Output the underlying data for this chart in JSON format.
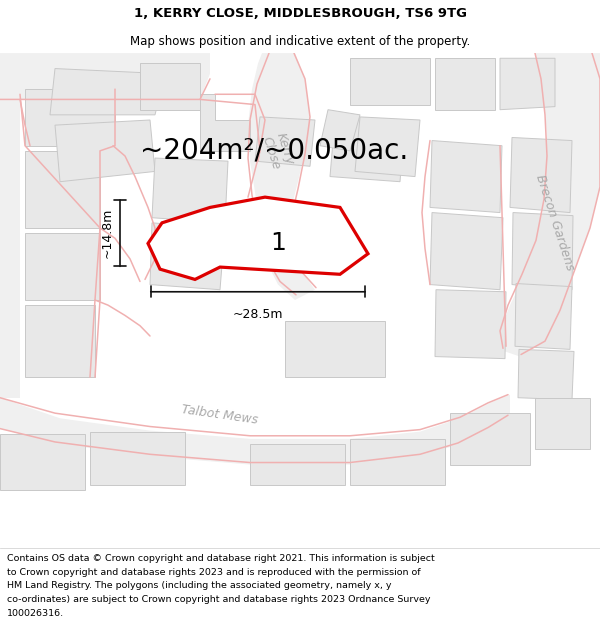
{
  "title_line1": "1, KERRY CLOSE, MIDDLESBROUGH, TS6 9TG",
  "title_line2": "Map shows position and indicative extent of the property.",
  "footer_lines": [
    "Contains OS data © Crown copyright and database right 2021. This information is subject",
    "to Crown copyright and database rights 2023 and is reproduced with the permission of",
    "HM Land Registry. The polygons (including the associated geometry, namely x, y",
    "co-ordinates) are subject to Crown copyright and database rights 2023 Ordnance Survey",
    "100026316."
  ],
  "area_label": "~204m²/~0.050ac.",
  "width_label": "~28.5m",
  "height_label": "~14.8m",
  "plot_number": "1",
  "map_bg": "#ffffff",
  "building_color": "#e8e8e8",
  "building_stroke": "#c8c8c8",
  "red_line_color": "#dd0000",
  "pink_road_color": "#f0b0b0",
  "street_label_color": "#aaaaaa",
  "dim_line_color": "#111111",
  "title_fontsize": 9.5,
  "subtitle_fontsize": 8.5,
  "area_fontsize": 20,
  "dim_fontsize": 9,
  "street_fontsize": 9,
  "footer_fontsize": 6.8,
  "plot_number_fontsize": 18
}
